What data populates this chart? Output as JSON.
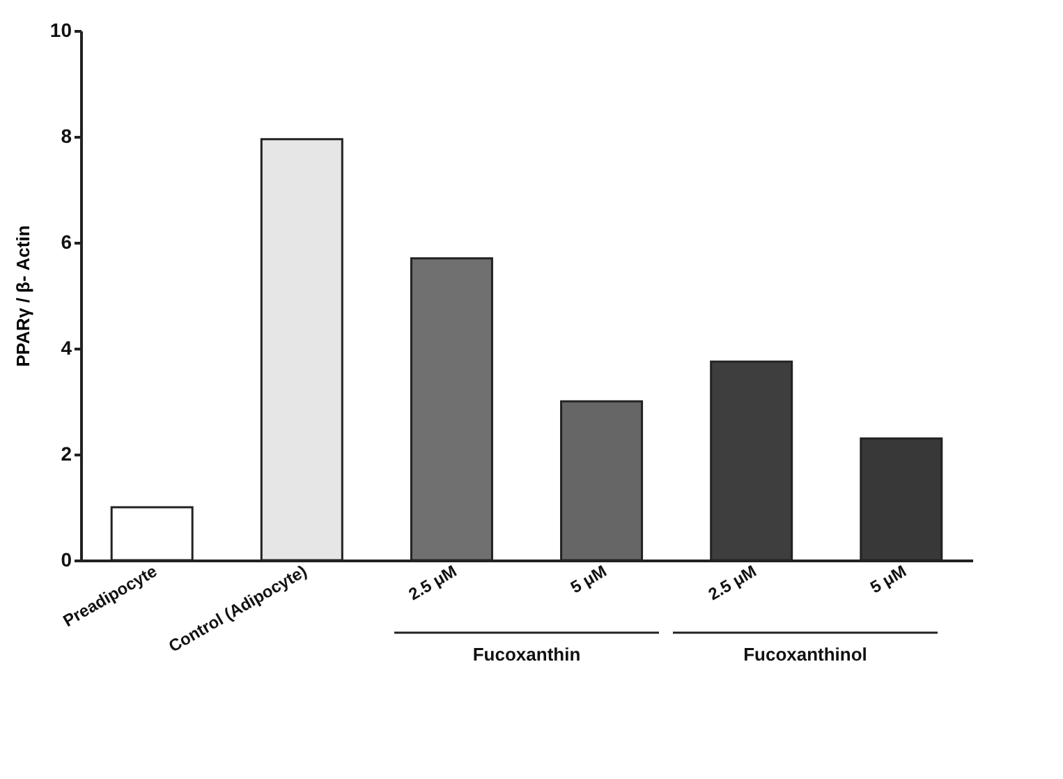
{
  "chart_data": {
    "type": "bar",
    "ylabel": "PPARγ / β- Actin",
    "categories": [
      "Preadipocyte",
      "Control (Adipocyte)",
      "2.5 μM",
      "5 μM",
      "2.5 μM",
      "5 μM"
    ],
    "values": [
      1.0,
      7.95,
      5.7,
      3.0,
      3.75,
      2.3
    ],
    "colors": [
      "#ffffff",
      "#e6e6e6",
      "#707070",
      "#666666",
      "#3e3e3e",
      "#383838"
    ],
    "ylim": [
      0,
      10
    ],
    "yticks": [
      0,
      2,
      4,
      6,
      8,
      10
    ],
    "grid": false,
    "annotations": [
      "Fucoxanthin",
      "Fucoxanthinol"
    ]
  }
}
